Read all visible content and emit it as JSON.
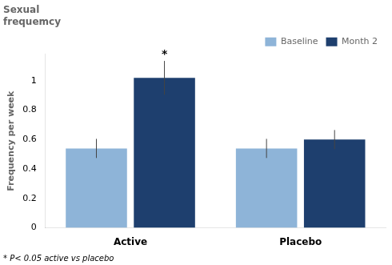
{
  "chart_data": {
    "type": "bar",
    "title": "Sexual\nfrequemcy",
    "ylabel": "Frequency per week",
    "categories": [
      "Active",
      "Placebo"
    ],
    "series": [
      {
        "name": "Baseline",
        "color": "#8eb4d8",
        "values": [
          0.54,
          0.54
        ],
        "errors": [
          0.065,
          0.065
        ]
      },
      {
        "name": "Month 2",
        "color": "#1e3f6e",
        "values": [
          1.02,
          0.6
        ],
        "errors": [
          0.115,
          0.065
        ]
      }
    ],
    "ylim": [
      0,
      1.18
    ],
    "yticks": [
      0,
      0.2,
      0.4,
      0.6,
      0.8,
      1
    ],
    "grid": false,
    "legend": "upper right",
    "annotations": [
      {
        "text": "*",
        "category": "Active",
        "series": "Month 2"
      }
    ],
    "footnote": "* P< 0.05 active vs placebo"
  }
}
